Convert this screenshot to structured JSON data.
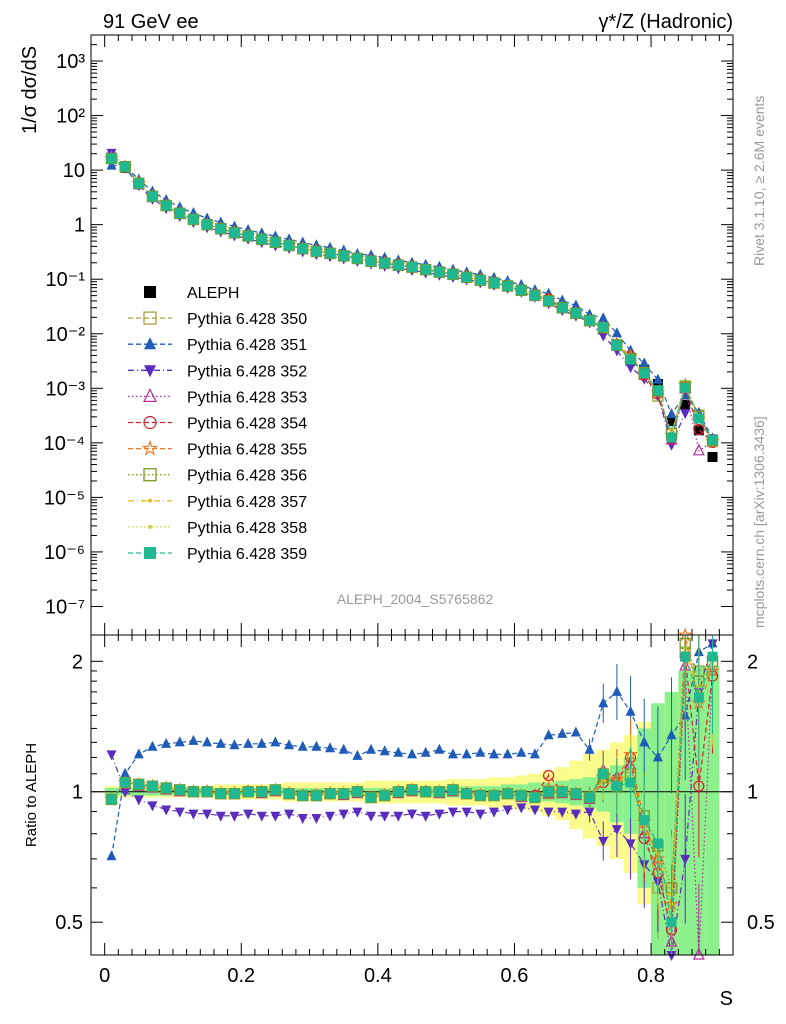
{
  "header": {
    "left": "91 GeV ee",
    "right": "γ*/Z (Hadronic)"
  },
  "side_text": {
    "top": "Rivet 3.1.10, ≥ 2.6M events",
    "bottom": "mcplots.cern.ch [arXiv:1306.3436]"
  },
  "watermark": "ALEPH_2004_S5765862",
  "chart_data": [
    {
      "type": "scatter",
      "panel": "main",
      "yscale": "log",
      "ylabel": "1/σ  dσ/dS",
      "xlabel": "S",
      "xlim": [
        -0.02,
        0.92
      ],
      "ylim": [
        3e-08,
        3000
      ],
      "y_tick_labels": [
        "10^-7",
        "10^-6",
        "10^-5",
        "10^-4",
        "10^-3",
        "10^-2",
        "10^-1",
        "1",
        "10",
        "10^2",
        "10^3"
      ],
      "x_tick_labels": [
        "0",
        "0.2",
        "0.4",
        "0.6",
        "0.8"
      ],
      "x": [
        0.01,
        0.03,
        0.05,
        0.07,
        0.09,
        0.11,
        0.13,
        0.15,
        0.17,
        0.19,
        0.21,
        0.23,
        0.25,
        0.27,
        0.29,
        0.31,
        0.33,
        0.35,
        0.37,
        0.39,
        0.41,
        0.43,
        0.45,
        0.47,
        0.49,
        0.51,
        0.53,
        0.55,
        0.57,
        0.59,
        0.61,
        0.63,
        0.65,
        0.67,
        0.69,
        0.71,
        0.73,
        0.75,
        0.77,
        0.79,
        0.81,
        0.83,
        0.85,
        0.87,
        0.89
      ],
      "legend_position": "middle-left",
      "series": [
        {
          "name": "ALEPH",
          "style": "data",
          "color": "#000000",
          "marker": "square-filled",
          "values": [
            17,
            11,
            5.5,
            3.2,
            2.2,
            1.6,
            1.25,
            1.0,
            0.85,
            0.72,
            0.62,
            0.54,
            0.47,
            0.42,
            0.37,
            0.33,
            0.3,
            0.27,
            0.24,
            0.22,
            0.2,
            0.18,
            0.165,
            0.15,
            0.135,
            0.122,
            0.11,
            0.098,
            0.087,
            0.076,
            0.064,
            0.052,
            0.04,
            0.03,
            0.024,
            0.018,
            0.012,
            0.006,
            0.0032,
            0.0022,
            0.0012,
            0.00025,
            0.0005,
            0.00017,
            5.5e-05
          ]
        },
        {
          "name": "Pythia 6.428 350",
          "style": "dash",
          "color": "#a8a040",
          "marker": "square-open",
          "ratio": [
            0.96,
            1.05,
            1.04,
            1.03,
            1.02,
            1.01,
            1.0,
            1.0,
            0.99,
            0.99,
            1.0,
            1.0,
            1.01,
            0.99,
            0.98,
            0.98,
            0.99,
            0.99,
            1.0,
            0.97,
            0.98,
            1.0,
            1.01,
            1.0,
            1.0,
            1.01,
            0.99,
            0.98,
            0.98,
            0.99,
            0.98,
            0.97,
            0.99,
            1.0,
            0.99,
            0.97,
            1.1,
            1.05,
            1.08,
            0.82,
            0.6,
            0.6,
            2.1,
            1.9,
            2.0
          ]
        },
        {
          "name": "Pythia 6.428 351",
          "style": "dash",
          "color": "#1f5bb8",
          "marker": "triangle-up",
          "ratio": [
            0.71,
            1.1,
            1.22,
            1.27,
            1.29,
            1.3,
            1.31,
            1.3,
            1.29,
            1.28,
            1.29,
            1.29,
            1.3,
            1.28,
            1.27,
            1.27,
            1.26,
            1.25,
            1.21,
            1.25,
            1.24,
            1.23,
            1.22,
            1.23,
            1.25,
            1.22,
            1.22,
            1.23,
            1.22,
            1.22,
            1.23,
            1.22,
            1.35,
            1.36,
            1.37,
            1.25,
            1.6,
            1.7,
            1.53,
            1.3,
            1.2,
            1.35,
            1.5,
            2.1,
            2.2
          ]
        },
        {
          "name": "Pythia 6.428 352",
          "style": "dashdot",
          "color": "#5a2dbe",
          "marker": "triangle-down",
          "ratio": [
            1.22,
            1.0,
            0.96,
            0.93,
            0.91,
            0.9,
            0.89,
            0.89,
            0.88,
            0.88,
            0.89,
            0.88,
            0.88,
            0.89,
            0.87,
            0.87,
            0.88,
            0.89,
            0.9,
            0.88,
            0.88,
            0.88,
            0.89,
            0.88,
            0.89,
            0.9,
            0.9,
            0.89,
            0.9,
            0.91,
            0.92,
            0.91,
            0.9,
            0.9,
            0.89,
            0.9,
            0.77,
            0.82,
            0.76,
            0.68,
            0.62,
            0.37,
            0.7,
            1.7,
            2.2
          ]
        },
        {
          "name": "Pythia 6.428 353",
          "style": "dot",
          "color": "#b02f9a",
          "marker": "triangle-open",
          "ratio": [
            0.96,
            1.04,
            1.03,
            1.02,
            1.01,
            1.0,
            1.0,
            1.0,
            0.99,
            0.99,
            1.0,
            0.99,
            1.0,
            0.99,
            0.98,
            0.98,
            0.99,
            0.98,
            0.99,
            0.97,
            0.98,
            0.99,
            1.0,
            1.0,
            0.99,
            1.0,
            0.99,
            0.98,
            0.98,
            0.99,
            0.97,
            0.98,
            0.99,
            0.99,
            0.98,
            0.96,
            1.12,
            1.08,
            1.15,
            0.8,
            0.7,
            0.45,
            1.95,
            0.42,
            1.9
          ]
        },
        {
          "name": "Pythia 6.428 354",
          "style": "dash",
          "color": "#d4202d",
          "marker": "circle-open",
          "ratio": [
            0.96,
            1.05,
            1.04,
            1.03,
            1.02,
            1.01,
            1.0,
            1.0,
            0.99,
            0.99,
            1.0,
            1.0,
            1.01,
            0.99,
            0.98,
            0.98,
            0.99,
            0.99,
            1.0,
            0.97,
            0.98,
            1.0,
            1.01,
            1.0,
            1.0,
            1.01,
            0.99,
            0.98,
            0.98,
            0.99,
            0.98,
            0.98,
            1.09,
            1.0,
            0.99,
            0.97,
            1.05,
            1.05,
            1.2,
            0.78,
            0.65,
            0.48,
            2.05,
            1.03,
            1.85
          ]
        },
        {
          "name": "Pythia 6.428 355",
          "style": "dash",
          "color": "#f07820",
          "marker": "star",
          "ratio": [
            0.96,
            1.05,
            1.04,
            1.03,
            1.02,
            1.01,
            1.0,
            1.0,
            0.99,
            0.99,
            1.0,
            1.0,
            1.01,
            0.99,
            0.98,
            0.98,
            0.99,
            0.99,
            1.0,
            0.97,
            0.98,
            1.0,
            1.01,
            1.0,
            1.0,
            1.01,
            0.99,
            0.98,
            0.98,
            0.99,
            0.98,
            0.97,
            1.02,
            1.0,
            0.99,
            0.97,
            1.08,
            1.07,
            1.22,
            0.85,
            0.7,
            0.55,
            2.3,
            1.6,
            1.9
          ]
        },
        {
          "name": "Pythia 6.428 356",
          "style": "dot",
          "color": "#7a9a20",
          "marker": "square-open",
          "ratio": [
            0.96,
            1.05,
            1.04,
            1.03,
            1.02,
            1.01,
            1.0,
            1.0,
            0.99,
            0.99,
            1.0,
            1.0,
            1.01,
            0.99,
            0.98,
            0.98,
            0.99,
            0.99,
            1.0,
            0.97,
            0.98,
            1.0,
            1.01,
            1.0,
            1.0,
            1.01,
            0.99,
            0.98,
            0.98,
            0.99,
            0.98,
            0.97,
            1.0,
            1.0,
            0.99,
            0.97,
            1.08,
            1.03,
            1.1,
            0.88,
            0.75,
            0.6,
            2.2,
            1.8,
            2.0
          ]
        },
        {
          "name": "Pythia 6.428 357",
          "style": "dashdot",
          "color": "#e8c020",
          "marker": "dot",
          "ratio": [
            0.96,
            1.05,
            1.04,
            1.03,
            1.02,
            1.01,
            1.0,
            1.0,
            0.99,
            0.99,
            1.0,
            1.0,
            1.01,
            0.99,
            0.98,
            0.98,
            0.99,
            0.99,
            1.0,
            0.97,
            0.98,
            1.0,
            1.01,
            1.0,
            1.0,
            1.01,
            0.99,
            0.98,
            0.98,
            0.99,
            0.98,
            0.97,
            1.0,
            1.0,
            0.99,
            0.97,
            1.06,
            1.04,
            1.12,
            0.82,
            0.72,
            0.55,
            2.1,
            1.7,
            1.95
          ]
        },
        {
          "name": "Pythia 6.428 358",
          "style": "dot",
          "color": "#c8d040",
          "marker": "dot",
          "ratio": [
            0.96,
            1.05,
            1.04,
            1.03,
            1.02,
            1.01,
            1.0,
            1.0,
            0.99,
            0.99,
            1.0,
            1.0,
            1.01,
            0.99,
            0.98,
            0.98,
            0.99,
            0.99,
            1.0,
            0.97,
            0.98,
            1.0,
            1.01,
            1.0,
            1.0,
            1.01,
            0.99,
            0.98,
            0.98,
            0.99,
            0.98,
            0.97,
            1.0,
            1.0,
            0.99,
            0.97,
            1.06,
            1.04,
            1.1,
            0.84,
            0.74,
            0.58,
            2.15,
            1.75,
            1.98
          ]
        },
        {
          "name": "Pythia 6.428 359",
          "style": "dash",
          "color": "#20b890",
          "marker": "square-filled",
          "ratio": [
            0.96,
            1.05,
            1.04,
            1.03,
            1.02,
            1.01,
            1.0,
            1.0,
            0.99,
            0.99,
            1.0,
            1.0,
            1.01,
            0.99,
            0.98,
            0.98,
            0.99,
            0.99,
            1.0,
            0.97,
            0.98,
            1.0,
            1.01,
            1.0,
            1.0,
            1.01,
            0.99,
            0.98,
            0.98,
            0.99,
            0.98,
            0.97,
            1.0,
            1.0,
            0.99,
            0.97,
            1.1,
            1.03,
            1.05,
            0.86,
            0.76,
            0.5,
            2.05,
            1.65,
            2.05
          ]
        }
      ]
    },
    {
      "type": "line",
      "panel": "ratio",
      "yscale": "log",
      "ylabel": "Ratio to ALEPH",
      "xlabel": "S",
      "ylim": [
        0.42,
        2.3
      ],
      "y_tick_labels": [
        "0.5",
        "1",
        "2"
      ],
      "x_tick_labels": [
        "0",
        "0.2",
        "0.4",
        "0.6",
        "0.8"
      ],
      "reference_line": 1,
      "band_stat_halfwidth": [
        0.02,
        0.02,
        0.02,
        0.02,
        0.02,
        0.02,
        0.02,
        0.02,
        0.02,
        0.02,
        0.02,
        0.02,
        0.02,
        0.02,
        0.02,
        0.02,
        0.02,
        0.02,
        0.02,
        0.02,
        0.02,
        0.02,
        0.02,
        0.02,
        0.03,
        0.03,
        0.03,
        0.03,
        0.03,
        0.04,
        0.04,
        0.05,
        0.05,
        0.06,
        0.07,
        0.08,
        0.1,
        0.15,
        0.2,
        0.4,
        0.6,
        0.7,
        0.9,
        0.95,
        0.95
      ],
      "band_syst_halfwidth": [
        0.03,
        0.03,
        0.03,
        0.03,
        0.03,
        0.03,
        0.03,
        0.03,
        0.04,
        0.04,
        0.04,
        0.04,
        0.04,
        0.05,
        0.05,
        0.05,
        0.05,
        0.05,
        0.05,
        0.06,
        0.06,
        0.06,
        0.06,
        0.06,
        0.06,
        0.07,
        0.07,
        0.07,
        0.08,
        0.08,
        0.09,
        0.1,
        0.12,
        0.14,
        0.18,
        0.22,
        0.25,
        0.3,
        0.35,
        0.45,
        0.55,
        0.65,
        0.75,
        0.85,
        0.9
      ]
    }
  ]
}
